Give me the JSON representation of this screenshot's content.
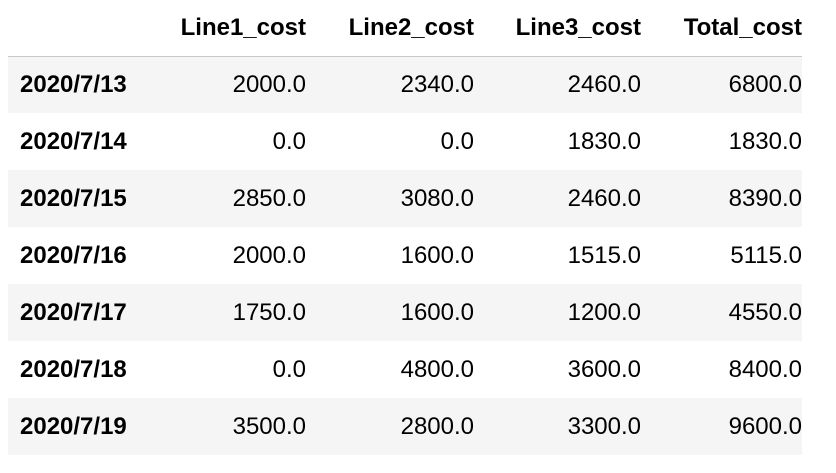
{
  "table": {
    "columns": [
      "",
      "Line1_cost",
      "Line2_cost",
      "Line3_cost",
      "Total_cost"
    ],
    "rows": [
      {
        "index": "2020/7/13",
        "cells": [
          "2000.0",
          "2340.0",
          "2460.0",
          "6800.0"
        ]
      },
      {
        "index": "2020/7/14",
        "cells": [
          "0.0",
          "0.0",
          "1830.0",
          "1830.0"
        ]
      },
      {
        "index": "2020/7/15",
        "cells": [
          "2850.0",
          "3080.0",
          "2460.0",
          "8390.0"
        ]
      },
      {
        "index": "2020/7/16",
        "cells": [
          "2000.0",
          "1600.0",
          "1515.0",
          "5115.0"
        ]
      },
      {
        "index": "2020/7/17",
        "cells": [
          "1750.0",
          "1600.0",
          "1200.0",
          "4550.0"
        ]
      },
      {
        "index": "2020/7/18",
        "cells": [
          "0.0",
          "4800.0",
          "3600.0",
          "8400.0"
        ]
      },
      {
        "index": "2020/7/19",
        "cells": [
          "3500.0",
          "2800.0",
          "3300.0",
          "9600.0"
        ]
      }
    ]
  },
  "colors": {
    "striped_row": "#f5f5f5",
    "plain_row": "#ffffff",
    "header_rule": "#c8c8c8",
    "text": "#000000"
  }
}
